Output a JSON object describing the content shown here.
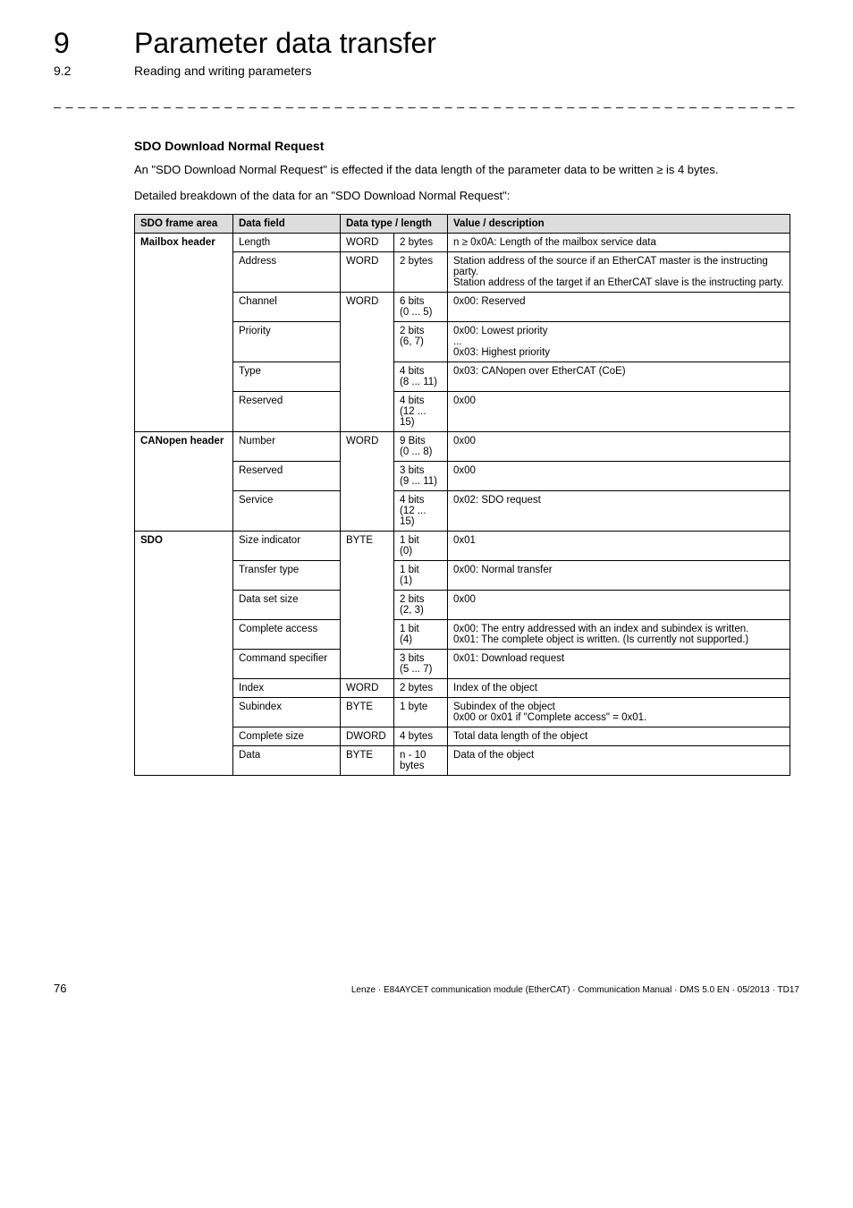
{
  "header": {
    "chapter_num": "9",
    "chapter_title": "Parameter data transfer",
    "section_num": "9.2",
    "section_title": "Reading and writing parameters"
  },
  "divider": "_ _ _ _ _ _ _ _ _ _ _ _ _ _ _ _ _ _ _ _ _ _ _ _ _ _ _ _ _ _ _ _ _ _ _ _ _ _ _ _ _ _ _ _ _ _ _ _ _ _ _ _ _ _ _ _ _ _ _ _ _ _ _ _",
  "section_heading": "SDO Download Normal Request",
  "paragraphs": {
    "p1": "An \"SDO Download Normal Request\" is effected if the data length of the parameter data to be written ≥ is 4 bytes.",
    "p2": "Detailed breakdown of the data for an \"SDO Download Normal Request\":"
  },
  "table": {
    "headers": {
      "frame": "SDO frame area",
      "field": "Data field",
      "type": "Data type / length",
      "desc": "Value / description"
    },
    "groups": {
      "mailbox": "Mailbox header",
      "canopen": "CANopen header",
      "sdo": "SDO"
    }
  },
  "rows": {
    "mb_length": {
      "field": "Length",
      "type": "WORD",
      "len": "2 bytes",
      "desc": "n ≥ 0x0A: Length of the mailbox service data"
    },
    "mb_address": {
      "field": "Address",
      "type": "WORD",
      "len": "2 bytes",
      "desc": "Station address of the source if an EtherCAT master is the instructing party.\nStation address of the target if an EtherCAT slave is the instructing party."
    },
    "mb_channel": {
      "field": "Channel",
      "type": "WORD",
      "len": "6 bits\n(0 ... 5)",
      "desc": "0x00: Reserved"
    },
    "mb_priority": {
      "field": "Priority",
      "len": "2 bits\n(6, 7)",
      "desc": "0x00: Lowest priority\n...\n0x03: Highest priority"
    },
    "mb_type": {
      "field": "Type",
      "len": "4 bits\n(8 ... 11)",
      "desc": "0x03: CANopen over EtherCAT (CoE)"
    },
    "mb_reserved": {
      "field": "Reserved",
      "len": "4 bits\n(12 ... 15)",
      "desc": "0x00"
    },
    "co_number": {
      "field": "Number",
      "type": "WORD",
      "len": "9 Bits\n(0 ... 8)",
      "desc": "0x00"
    },
    "co_reserved": {
      "field": "Reserved",
      "len": "3 bits\n(9 ... 11)",
      "desc": "0x00"
    },
    "co_service": {
      "field": "Service",
      "len": "4 bits\n(12 ... 15)",
      "desc": "0x02: SDO request"
    },
    "sdo_size": {
      "field": "Size indicator",
      "type": "BYTE",
      "len": "1 bit\n(0)",
      "desc": "0x01"
    },
    "sdo_transfer": {
      "field": "Transfer type",
      "len": "1 bit\n(1)",
      "desc": "0x00: Normal transfer"
    },
    "sdo_dataset": {
      "field": "Data set size",
      "len": "2 bits\n(2, 3)",
      "desc": "0x00"
    },
    "sdo_complete": {
      "field": "Complete access",
      "len": "1 bit\n(4)",
      "desc": "0x00: The entry addressed with an index and subindex is written.\n0x01: The complete object is written. (Is currently not supported.)"
    },
    "sdo_cmdspec": {
      "field": "Command specifier",
      "len": "3 bits\n(5 ... 7)",
      "desc": "0x01: Download request"
    },
    "sdo_index": {
      "field": "Index",
      "type": "WORD",
      "len": "2 bytes",
      "desc": "Index of the object"
    },
    "sdo_subindex": {
      "field": "Subindex",
      "type": "BYTE",
      "len": "1 byte",
      "desc": "Subindex of the object\n0x00 or 0x01 if \"Complete access\" = 0x01."
    },
    "sdo_compsize": {
      "field": "Complete size",
      "type": "DWORD",
      "len": "4 bytes",
      "desc": "Total data length of the object"
    },
    "sdo_data": {
      "field": "Data",
      "type": "BYTE",
      "len": "n - 10\nbytes",
      "desc": "Data of the object"
    }
  },
  "footer": {
    "page": "76",
    "info": "Lenze · E84AYCET communication module (EtherCAT) · Communication Manual · DMS 5.0 EN · 05/2013 · TD17"
  }
}
